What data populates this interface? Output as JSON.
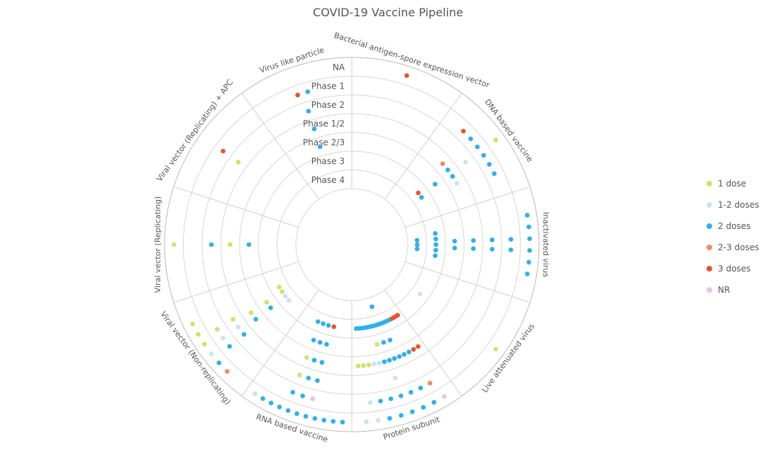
{
  "chart_data": {
    "type": "scatter",
    "title": "COVID-19 Vaccine Pipeline",
    "polar": true,
    "radial_axis": {
      "categories_outer_to_inner": [
        "NA",
        "Phase 1",
        "Phase 2",
        "Phase 1/2",
        "Phase 2/3",
        "Phase 3",
        "Phase 4"
      ]
    },
    "angular_axis": {
      "direction": "clockwise",
      "categories": [
        "Bacterial antigen-spore expression vector",
        "DNA based vaccine",
        "Inactivated virus",
        "Live attenuated virus",
        "Protein subunit",
        "RNA based vaccine",
        "Viral vector (Non-replicating)",
        "Viral vector (Replicating)",
        "Viral vector (Replicating) + APC",
        "Virus like particle"
      ]
    },
    "grid": true,
    "legend_position": "right",
    "legend": [
      {
        "name": "1 dose",
        "color": "#d4e06a"
      },
      {
        "name": "1-2 doses",
        "color": "#c6e4f6"
      },
      {
        "name": "2 doses",
        "color": "#2fb0ea"
      },
      {
        "name": "2-3 doses",
        "color": "#ef8a62"
      },
      {
        "name": "3 doses",
        "color": "#e8552a"
      },
      {
        "name": "NR",
        "color": "#e6c3ea"
      }
    ],
    "series": [
      {
        "category": "Bacterial antigen-spore expression vector",
        "phase": "NA",
        "dose": "3 doses"
      },
      {
        "category": "DNA based vaccine",
        "phase": "NA",
        "dose": "1 dose"
      },
      {
        "category": "DNA based vaccine",
        "phase": "Phase 1",
        "dose": "3 doses"
      },
      {
        "category": "DNA based vaccine",
        "phase": "Phase 1",
        "dose": "2 doses"
      },
      {
        "category": "DNA based vaccine",
        "phase": "Phase 1",
        "dose": "2 doses"
      },
      {
        "category": "DNA based vaccine",
        "phase": "Phase 1",
        "dose": "2 doses"
      },
      {
        "category": "DNA based vaccine",
        "phase": "Phase 1",
        "dose": "2 doses"
      },
      {
        "category": "DNA based vaccine",
        "phase": "Phase 1",
        "dose": "2 doses"
      },
      {
        "category": "DNA based vaccine",
        "phase": "Phase 2",
        "dose": "1-2 doses"
      },
      {
        "category": "DNA based vaccine",
        "phase": "Phase 1/2",
        "dose": "2-3 doses"
      },
      {
        "category": "DNA based vaccine",
        "phase": "Phase 1/2",
        "dose": "2 doses"
      },
      {
        "category": "DNA based vaccine",
        "phase": "Phase 1/2",
        "dose": "2 doses"
      },
      {
        "category": "DNA based vaccine",
        "phase": "Phase 1/2",
        "dose": "1-2 doses"
      },
      {
        "category": "DNA based vaccine",
        "phase": "Phase 2/3",
        "dose": "2 doses"
      },
      {
        "category": "DNA based vaccine",
        "phase": "Phase 3",
        "dose": "3 doses"
      },
      {
        "category": "DNA based vaccine",
        "phase": "Phase 3",
        "dose": "2 doses"
      },
      {
        "category": "Inactivated virus",
        "phase": "NA",
        "dose": "2 doses"
      },
      {
        "category": "Inactivated virus",
        "phase": "NA",
        "dose": "2 doses"
      },
      {
        "category": "Inactivated virus",
        "phase": "NA",
        "dose": "2 doses"
      },
      {
        "category": "Inactivated virus",
        "phase": "NA",
        "dose": "2 doses"
      },
      {
        "category": "Inactivated virus",
        "phase": "NA",
        "dose": "2 doses"
      },
      {
        "category": "Inactivated virus",
        "phase": "NA",
        "dose": "2 doses"
      },
      {
        "category": "Inactivated virus",
        "phase": "Phase 1",
        "dose": "2 doses"
      },
      {
        "category": "Inactivated virus",
        "phase": "Phase 1",
        "dose": "2 doses"
      },
      {
        "category": "Inactivated virus",
        "phase": "Phase 2",
        "dose": "2 doses"
      },
      {
        "category": "Inactivated virus",
        "phase": "Phase 2",
        "dose": "2 doses"
      },
      {
        "category": "Inactivated virus",
        "phase": "Phase 1/2",
        "dose": "2 doses"
      },
      {
        "category": "Inactivated virus",
        "phase": "Phase 1/2",
        "dose": "2 doses"
      },
      {
        "category": "Inactivated virus",
        "phase": "Phase 2/3",
        "dose": "2 doses"
      },
      {
        "category": "Inactivated virus",
        "phase": "Phase 2/3",
        "dose": "2 doses"
      },
      {
        "category": "Inactivated virus",
        "phase": "Phase 3",
        "dose": "2 doses"
      },
      {
        "category": "Inactivated virus",
        "phase": "Phase 3",
        "dose": "2 doses"
      },
      {
        "category": "Inactivated virus",
        "phase": "Phase 3",
        "dose": "2 doses"
      },
      {
        "category": "Inactivated virus",
        "phase": "Phase 3",
        "dose": "2 doses"
      },
      {
        "category": "Inactivated virus",
        "phase": "Phase 3",
        "dose": "2 doses"
      },
      {
        "category": "Inactivated virus",
        "phase": "Phase 4",
        "dose": "2 doses"
      },
      {
        "category": "Inactivated virus",
        "phase": "Phase 4",
        "dose": "2 doses"
      },
      {
        "category": "Inactivated virus",
        "phase": "Phase 4",
        "dose": "2 doses"
      },
      {
        "category": "Live attenuated virus",
        "phase": "NA",
        "dose": "1 dose"
      },
      {
        "category": "Live attenuated virus",
        "phase": "Phase 3",
        "dose": "1-2 doses"
      },
      {
        "category": "Protein subunit",
        "phase": "NA",
        "dose": "NR"
      },
      {
        "category": "Protein subunit",
        "phase": "NA",
        "dose": "2 doses"
      },
      {
        "category": "Protein subunit",
        "phase": "NA",
        "dose": "2 doses"
      },
      {
        "category": "Protein subunit",
        "phase": "NA",
        "dose": "2 doses"
      },
      {
        "category": "Protein subunit",
        "phase": "NA",
        "dose": "2 doses"
      },
      {
        "category": "Protein subunit",
        "phase": "NA",
        "dose": "2 doses"
      },
      {
        "category": "Protein subunit",
        "phase": "NA",
        "dose": "1-2 doses"
      },
      {
        "category": "Protein subunit",
        "phase": "NA",
        "dose": "1-2 doses"
      },
      {
        "category": "Protein subunit",
        "phase": "Phase 1",
        "dose": "2-3 doses"
      },
      {
        "category": "Protein subunit",
        "phase": "Phase 1",
        "dose": "2 doses"
      },
      {
        "category": "Protein subunit",
        "phase": "Phase 1",
        "dose": "2 doses"
      },
      {
        "category": "Protein subunit",
        "phase": "Phase 1",
        "dose": "2 doses"
      },
      {
        "category": "Protein subunit",
        "phase": "Phase 1",
        "dose": "2 doses"
      },
      {
        "category": "Protein subunit",
        "phase": "Phase 1",
        "dose": "2 doses"
      },
      {
        "category": "Protein subunit",
        "phase": "Phase 1",
        "dose": "1-2 doses"
      },
      {
        "category": "Protein subunit",
        "phase": "Phase 2",
        "dose": "1-2 doses"
      },
      {
        "category": "Protein subunit",
        "phase": "Phase 1/2",
        "dose": "3 doses"
      },
      {
        "category": "Protein subunit",
        "phase": "Phase 1/2",
        "dose": "3 doses"
      },
      {
        "category": "Protein subunit",
        "phase": "Phase 1/2",
        "dose": "2 doses"
      },
      {
        "category": "Protein subunit",
        "phase": "Phase 1/2",
        "dose": "2 doses"
      },
      {
        "category": "Protein subunit",
        "phase": "Phase 1/2",
        "dose": "2 doses"
      },
      {
        "category": "Protein subunit",
        "phase": "Phase 1/2",
        "dose": "2 doses"
      },
      {
        "category": "Protein subunit",
        "phase": "Phase 1/2",
        "dose": "2 doses"
      },
      {
        "category": "Protein subunit",
        "phase": "Phase 1/2",
        "dose": "2 doses"
      },
      {
        "category": "Protein subunit",
        "phase": "Phase 1/2",
        "dose": "1-2 doses"
      },
      {
        "category": "Protein subunit",
        "phase": "Phase 1/2",
        "dose": "1-2 doses"
      },
      {
        "category": "Protein subunit",
        "phase": "Phase 1/2",
        "dose": "1 dose"
      },
      {
        "category": "Protein subunit",
        "phase": "Phase 1/2",
        "dose": "1 dose"
      },
      {
        "category": "Protein subunit",
        "phase": "Phase 1/2",
        "dose": "1 dose"
      },
      {
        "category": "Protein subunit",
        "phase": "Phase 2/3",
        "dose": "2 doses"
      },
      {
        "category": "Protein subunit",
        "phase": "Phase 2/3",
        "dose": "2 doses"
      },
      {
        "category": "Protein subunit",
        "phase": "Phase 2/3",
        "dose": "1 dose"
      },
      {
        "category": "Protein subunit",
        "phase": "Phase 3",
        "dose": "3 doses"
      },
      {
        "category": "Protein subunit",
        "phase": "Phase 3",
        "dose": "3 doses"
      },
      {
        "category": "Protein subunit",
        "phase": "Phase 3",
        "dose": "3 doses"
      },
      {
        "category": "Protein subunit",
        "phase": "Phase 3",
        "dose": "3 doses"
      },
      {
        "category": "Protein subunit",
        "phase": "Phase 3",
        "dose": "2 doses"
      },
      {
        "category": "Protein subunit",
        "phase": "Phase 3",
        "dose": "2 doses"
      },
      {
        "category": "Protein subunit",
        "phase": "Phase 3",
        "dose": "2 doses"
      },
      {
        "category": "Protein subunit",
        "phase": "Phase 3",
        "dose": "2 doses"
      },
      {
        "category": "Protein subunit",
        "phase": "Phase 3",
        "dose": "2 doses"
      },
      {
        "category": "Protein subunit",
        "phase": "Phase 3",
        "dose": "2 doses"
      },
      {
        "category": "Protein subunit",
        "phase": "Phase 3",
        "dose": "2 doses"
      },
      {
        "category": "Protein subunit",
        "phase": "Phase 3",
        "dose": "2 doses"
      },
      {
        "category": "Protein subunit",
        "phase": "Phase 3",
        "dose": "2 doses"
      },
      {
        "category": "Protein subunit",
        "phase": "Phase 3",
        "dose": "2 doses"
      },
      {
        "category": "Protein subunit",
        "phase": "Phase 3",
        "dose": "2 doses"
      },
      {
        "category": "Protein subunit",
        "phase": "Phase 3",
        "dose": "2 doses"
      },
      {
        "category": "Protein subunit",
        "phase": "Phase 3",
        "dose": "2 doses"
      },
      {
        "category": "Protein subunit",
        "phase": "Phase 3",
        "dose": "2 doses"
      },
      {
        "category": "Protein subunit",
        "phase": "Phase 4",
        "dose": "2 doses"
      },
      {
        "category": "RNA based vaccine",
        "phase": "NA",
        "dose": "2 doses"
      },
      {
        "category": "RNA based vaccine",
        "phase": "NA",
        "dose": "2 doses"
      },
      {
        "category": "RNA based vaccine",
        "phase": "NA",
        "dose": "2 doses"
      },
      {
        "category": "RNA based vaccine",
        "phase": "NA",
        "dose": "2 doses"
      },
      {
        "category": "RNA based vaccine",
        "phase": "NA",
        "dose": "2 doses"
      },
      {
        "category": "RNA based vaccine",
        "phase": "NA",
        "dose": "2 doses"
      },
      {
        "category": "RNA based vaccine",
        "phase": "NA",
        "dose": "2 doses"
      },
      {
        "category": "RNA based vaccine",
        "phase": "NA",
        "dose": "2 doses"
      },
      {
        "category": "RNA based vaccine",
        "phase": "NA",
        "dose": "2 doses"
      },
      {
        "category": "RNA based vaccine",
        "phase": "NA",
        "dose": "2 doses"
      },
      {
        "category": "RNA based vaccine",
        "phase": "NA",
        "dose": "1-2 doses"
      },
      {
        "category": "RNA based vaccine",
        "phase": "Phase 1",
        "dose": "NR"
      },
      {
        "category": "RNA based vaccine",
        "phase": "Phase 1",
        "dose": "2 doses"
      },
      {
        "category": "RNA based vaccine",
        "phase": "Phase 1",
        "dose": "2 doses"
      },
      {
        "category": "RNA based vaccine",
        "phase": "Phase 2",
        "dose": "2 doses"
      },
      {
        "category": "RNA based vaccine",
        "phase": "Phase 2",
        "dose": "2 doses"
      },
      {
        "category": "RNA based vaccine",
        "phase": "Phase 2",
        "dose": "1 dose"
      },
      {
        "category": "RNA based vaccine",
        "phase": "Phase 1/2",
        "dose": "2 doses"
      },
      {
        "category": "RNA based vaccine",
        "phase": "Phase 1/2",
        "dose": "2 doses"
      },
      {
        "category": "RNA based vaccine",
        "phase": "Phase 1/2",
        "dose": "1 dose"
      },
      {
        "category": "RNA based vaccine",
        "phase": "Phase 2/3",
        "dose": "2 doses"
      },
      {
        "category": "RNA based vaccine",
        "phase": "Phase 2/3",
        "dose": "2 doses"
      },
      {
        "category": "RNA based vaccine",
        "phase": "Phase 2/3",
        "dose": "2 doses"
      },
      {
        "category": "RNA based vaccine",
        "phase": "Phase 3",
        "dose": "3 doses"
      },
      {
        "category": "RNA based vaccine",
        "phase": "Phase 3",
        "dose": "2 doses"
      },
      {
        "category": "RNA based vaccine",
        "phase": "Phase 3",
        "dose": "2 doses"
      },
      {
        "category": "RNA based vaccine",
        "phase": "Phase 3",
        "dose": "2 doses"
      },
      {
        "category": "Viral vector (Non-replicating)",
        "phase": "NA",
        "dose": "2-3 doses"
      },
      {
        "category": "Viral vector (Non-replicating)",
        "phase": "NA",
        "dose": "2 doses"
      },
      {
        "category": "Viral vector (Non-replicating)",
        "phase": "NA",
        "dose": "1-2 doses"
      },
      {
        "category": "Viral vector (Non-replicating)",
        "phase": "NA",
        "dose": "1 dose"
      },
      {
        "category": "Viral vector (Non-replicating)",
        "phase": "NA",
        "dose": "1 dose"
      },
      {
        "category": "Viral vector (Non-replicating)",
        "phase": "NA",
        "dose": "1 dose"
      },
      {
        "category": "Viral vector (Non-replicating)",
        "phase": "Phase 1",
        "dose": "2 doses"
      },
      {
        "category": "Viral vector (Non-replicating)",
        "phase": "Phase 1",
        "dose": "1-2 doses"
      },
      {
        "category": "Viral vector (Non-replicating)",
        "phase": "Phase 1",
        "dose": "1 dose"
      },
      {
        "category": "Viral vector (Non-replicating)",
        "phase": "Phase 2",
        "dose": "2 doses"
      },
      {
        "category": "Viral vector (Non-replicating)",
        "phase": "Phase 2",
        "dose": "1-2 doses"
      },
      {
        "category": "Viral vector (Non-replicating)",
        "phase": "Phase 2",
        "dose": "1 dose"
      },
      {
        "category": "Viral vector (Non-replicating)",
        "phase": "Phase 1/2",
        "dose": "2 doses"
      },
      {
        "category": "Viral vector (Non-replicating)",
        "phase": "Phase 1/2",
        "dose": "1 dose"
      },
      {
        "category": "Viral vector (Non-replicating)",
        "phase": "Phase 2/3",
        "dose": "2 doses"
      },
      {
        "category": "Viral vector (Non-replicating)",
        "phase": "Phase 2/3",
        "dose": "1 dose"
      },
      {
        "category": "Viral vector (Non-replicating)",
        "phase": "Phase 3",
        "dose": "1-2 doses"
      },
      {
        "category": "Viral vector (Non-replicating)",
        "phase": "Phase 3",
        "dose": "1-2 doses"
      },
      {
        "category": "Viral vector (Non-replicating)",
        "phase": "Phase 3",
        "dose": "1 dose"
      },
      {
        "category": "Viral vector (Non-replicating)",
        "phase": "Phase 3",
        "dose": "1 dose"
      },
      {
        "category": "Viral vector (Replicating)",
        "phase": "NA",
        "dose": "1 dose"
      },
      {
        "category": "Viral vector (Replicating)",
        "phase": "Phase 2",
        "dose": "2 doses"
      },
      {
        "category": "Viral vector (Replicating)",
        "phase": "Phase 1/2",
        "dose": "1 dose"
      },
      {
        "category": "Viral vector (Replicating)",
        "phase": "Phase 2/3",
        "dose": "2 doses"
      },
      {
        "category": "Viral vector (Replicating) + APC",
        "phase": "Phase 1",
        "dose": "3 doses"
      },
      {
        "category": "Viral vector (Replicating) + APC",
        "phase": "Phase 2",
        "dose": "1 dose"
      },
      {
        "category": "Virus like particle",
        "phase": "Phase 1",
        "dose": "3 doses"
      },
      {
        "category": "Virus like particle",
        "phase": "Phase 1",
        "dose": "2 doses"
      },
      {
        "category": "Virus like particle",
        "phase": "Phase 2",
        "dose": "2 doses"
      },
      {
        "category": "Virus like particle",
        "phase": "Phase 1/2",
        "dose": "2 doses"
      },
      {
        "category": "Virus like particle",
        "phase": "Phase 2/3",
        "dose": "2 doses"
      }
    ]
  }
}
